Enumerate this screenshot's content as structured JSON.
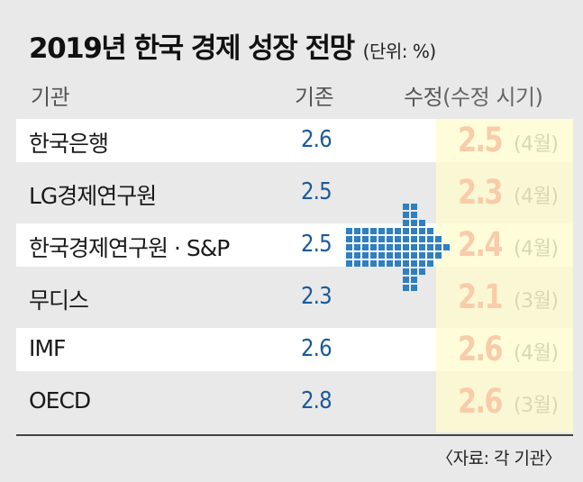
{
  "chart_data": {
    "type": "table",
    "title": "2019년 한국 경제 성장 전망",
    "unit": "(단위: %)",
    "columns": [
      "기관",
      "기존",
      "수정",
      "(수정 시기)"
    ],
    "rows": [
      {
        "org": "한국은행",
        "prev": "2.6",
        "rev": "2.5",
        "period": "(4월)"
      },
      {
        "org": "LG경제연구원",
        "prev": "2.5",
        "rev": "2.3",
        "period": "(4월)"
      },
      {
        "org": "한국경제연구원 · S&P",
        "prev": "2.5",
        "rev": "2.4",
        "period": "(4월)"
      },
      {
        "org": "무디스",
        "prev": "2.3",
        "rev": "2.1",
        "period": "(3월)"
      },
      {
        "org": "IMF",
        "prev": "2.6",
        "rev": "2.6",
        "period": "(4월)"
      },
      {
        "org": "OECD",
        "prev": "2.8",
        "rev": "2.6",
        "period": "(3월)"
      }
    ],
    "source": "〈자료: 각 기관〉",
    "colors": {
      "previous": "#1b5a9a",
      "revised": "#e52421",
      "highlight": "#fffbd0",
      "arrow": "#2f7fc1"
    }
  }
}
